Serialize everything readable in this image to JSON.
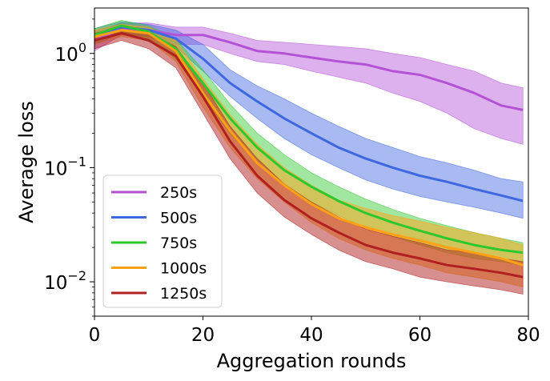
{
  "chart_data": {
    "type": "line",
    "title": "",
    "xlabel": "Aggregation rounds",
    "ylabel": "Average loss",
    "xlim": [
      0,
      80
    ],
    "ylim": [
      0.005,
      2.5
    ],
    "yscale": "log",
    "grid": false,
    "legend_position": "lower-left",
    "x_ticks": [
      0,
      20,
      40,
      60,
      80
    ],
    "x_tick_labels": [
      "0",
      "20",
      "40",
      "60",
      "80"
    ],
    "y_ticks": [
      1,
      0.1,
      0.01
    ],
    "y_tick_labels": [
      {
        "base": "10",
        "exp": "0"
      },
      {
        "base": "10",
        "exp": "−1"
      },
      {
        "base": "10",
        "exp": "−2"
      }
    ],
    "series": [
      {
        "name": "250s",
        "color": "#b452d6",
        "band_opacity": 0.45,
        "x": [
          0,
          5,
          10,
          15,
          20,
          25,
          30,
          35,
          40,
          45,
          50,
          55,
          60,
          65,
          70,
          75,
          79
        ],
        "mean": [
          1.3,
          1.65,
          1.6,
          1.45,
          1.45,
          1.25,
          1.05,
          1.0,
          0.92,
          0.85,
          0.8,
          0.7,
          0.65,
          0.55,
          0.45,
          0.35,
          0.32
        ],
        "lower": [
          1.05,
          1.45,
          1.4,
          1.2,
          1.2,
          1.0,
          0.85,
          0.8,
          0.7,
          0.62,
          0.55,
          0.45,
          0.38,
          0.3,
          0.22,
          0.18,
          0.16
        ],
        "upper": [
          1.55,
          1.85,
          1.85,
          1.7,
          1.7,
          1.5,
          1.3,
          1.25,
          1.2,
          1.15,
          1.1,
          1.0,
          0.92,
          0.8,
          0.7,
          0.55,
          0.5
        ]
      },
      {
        "name": "500s",
        "color": "#3f67e0",
        "band_opacity": 0.45,
        "x": [
          0,
          5,
          10,
          15,
          20,
          25,
          30,
          35,
          40,
          45,
          50,
          55,
          60,
          65,
          70,
          75,
          79
        ],
        "mean": [
          1.4,
          1.7,
          1.6,
          1.35,
          0.9,
          0.55,
          0.38,
          0.27,
          0.2,
          0.15,
          0.12,
          0.1,
          0.085,
          0.075,
          0.065,
          0.057,
          0.051
        ],
        "lower": [
          1.2,
          1.5,
          1.4,
          1.15,
          0.7,
          0.42,
          0.27,
          0.18,
          0.13,
          0.1,
          0.078,
          0.065,
          0.056,
          0.05,
          0.045,
          0.04,
          0.036
        ],
        "upper": [
          1.65,
          1.9,
          1.8,
          1.6,
          1.2,
          0.72,
          0.52,
          0.4,
          0.3,
          0.23,
          0.18,
          0.15,
          0.125,
          0.11,
          0.095,
          0.08,
          0.075
        ]
      },
      {
        "name": "750s",
        "color": "#2ec72e",
        "band_opacity": 0.45,
        "x": [
          0,
          5,
          10,
          15,
          20,
          25,
          30,
          35,
          40,
          45,
          50,
          55,
          60,
          65,
          70,
          75,
          79
        ],
        "mean": [
          1.45,
          1.75,
          1.55,
          1.1,
          0.55,
          0.27,
          0.15,
          0.095,
          0.068,
          0.051,
          0.04,
          0.033,
          0.028,
          0.024,
          0.021,
          0.019,
          0.018
        ],
        "lower": [
          1.25,
          1.55,
          1.35,
          0.9,
          0.42,
          0.2,
          0.11,
          0.07,
          0.05,
          0.038,
          0.03,
          0.025,
          0.021,
          0.018,
          0.016,
          0.015,
          0.014
        ],
        "upper": [
          1.65,
          1.95,
          1.75,
          1.35,
          0.72,
          0.36,
          0.2,
          0.13,
          0.09,
          0.068,
          0.053,
          0.043,
          0.036,
          0.031,
          0.027,
          0.024,
          0.022
        ]
      },
      {
        "name": "1000s",
        "color": "#ffa114",
        "band_opacity": 0.5,
        "x": [
          0,
          5,
          10,
          15,
          20,
          25,
          30,
          35,
          40,
          45,
          50,
          55,
          60,
          65,
          70,
          75,
          79
        ],
        "mean": [
          1.4,
          1.6,
          1.5,
          1.05,
          0.45,
          0.21,
          0.11,
          0.07,
          0.048,
          0.036,
          0.03,
          0.026,
          0.023,
          0.02,
          0.018,
          0.016,
          0.014
        ],
        "lower": [
          1.2,
          1.4,
          1.3,
          0.85,
          0.34,
          0.15,
          0.08,
          0.05,
          0.033,
          0.024,
          0.019,
          0.016,
          0.014,
          0.012,
          0.011,
          0.01,
          0.009
        ],
        "upper": [
          1.6,
          1.8,
          1.7,
          1.3,
          0.6,
          0.29,
          0.16,
          0.1,
          0.07,
          0.052,
          0.044,
          0.038,
          0.034,
          0.03,
          0.027,
          0.024,
          0.021
        ]
      },
      {
        "name": "1250s",
        "color": "#b02020",
        "band_opacity": 0.5,
        "x": [
          0,
          5,
          10,
          15,
          20,
          25,
          30,
          35,
          40,
          45,
          50,
          55,
          60,
          65,
          70,
          75,
          79
        ],
        "mean": [
          1.3,
          1.5,
          1.3,
          0.95,
          0.42,
          0.17,
          0.085,
          0.052,
          0.036,
          0.027,
          0.021,
          0.018,
          0.016,
          0.014,
          0.013,
          0.012,
          0.011
        ],
        "lower": [
          1.1,
          1.3,
          1.1,
          0.75,
          0.3,
          0.12,
          0.06,
          0.037,
          0.026,
          0.019,
          0.015,
          0.013,
          0.011,
          0.01,
          0.0092,
          0.0085,
          0.0078
        ],
        "upper": [
          1.5,
          1.7,
          1.5,
          1.15,
          0.55,
          0.23,
          0.12,
          0.072,
          0.05,
          0.037,
          0.029,
          0.025,
          0.022,
          0.019,
          0.018,
          0.016,
          0.015
        ]
      }
    ]
  }
}
